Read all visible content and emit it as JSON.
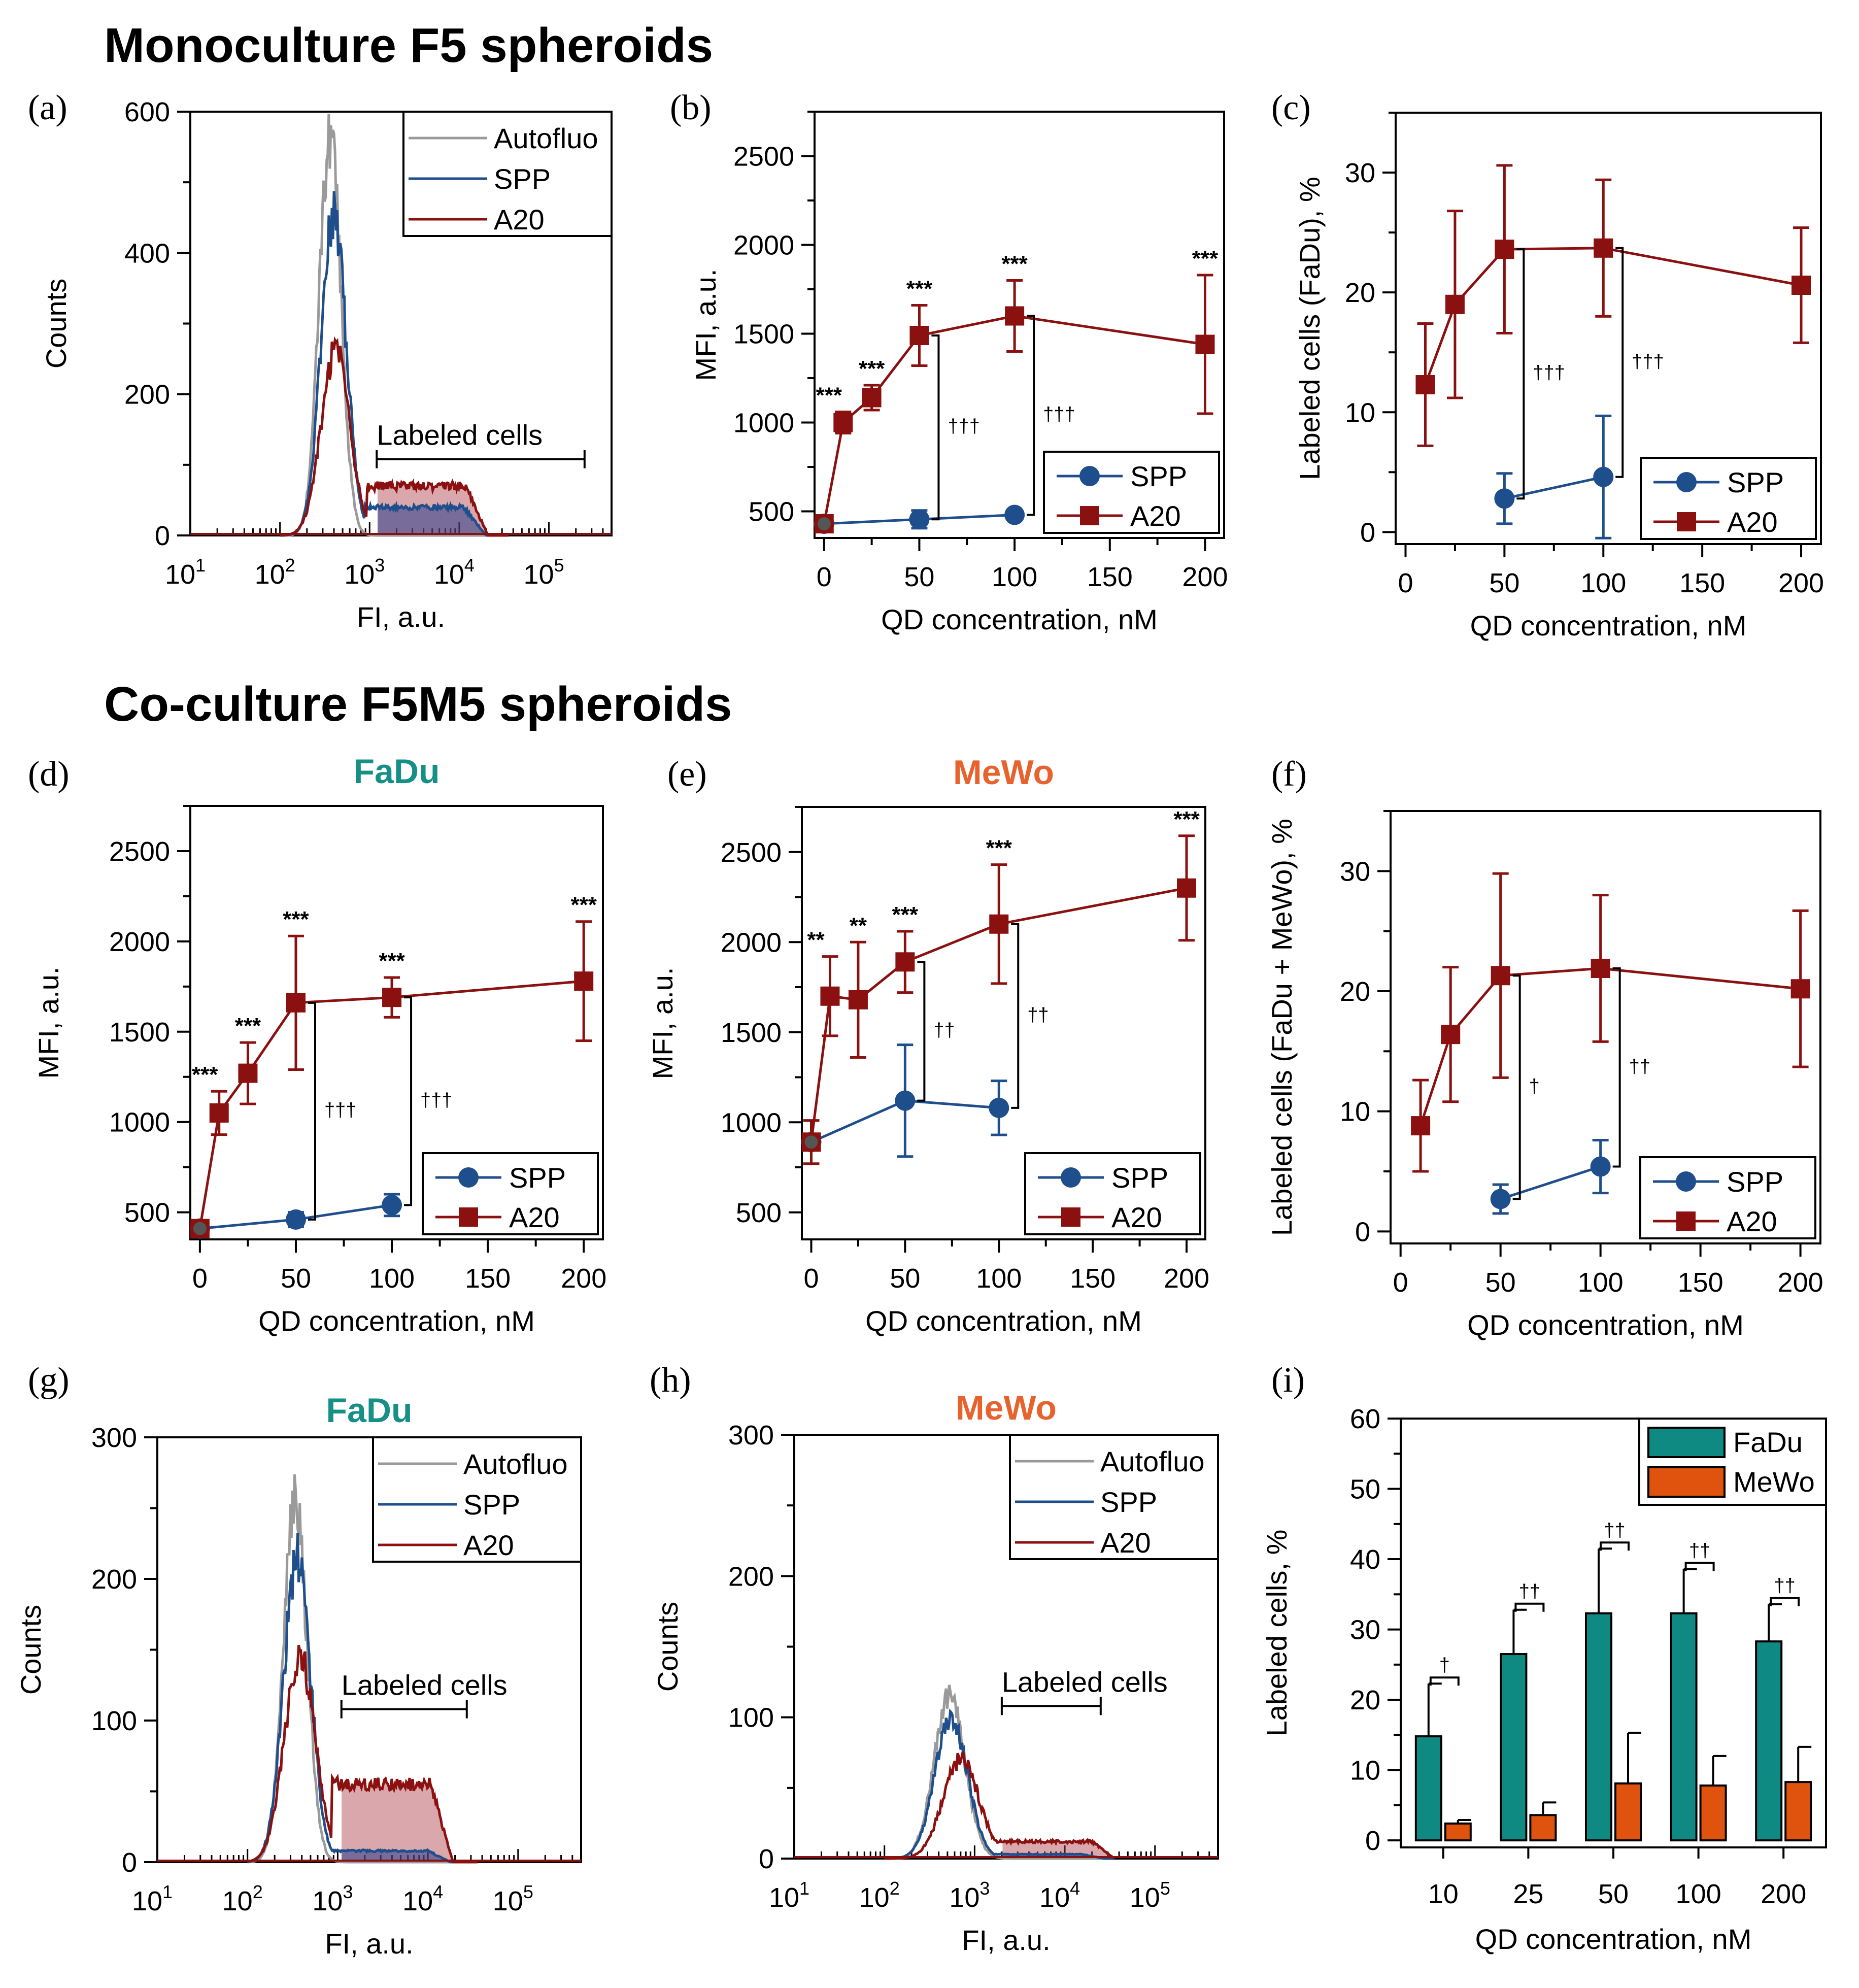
{
  "headings": {
    "monoculture": "Monoculture F5 spheroids",
    "coculture": "Co-culture F5M5 spheroids"
  },
  "colors": {
    "spp": "#1f4e8c",
    "a20": "#8b1010",
    "autofluo": "#9a9a9a",
    "fadu": "#0e8a83",
    "mewo": "#e0530f",
    "fadu_title": "#168f87",
    "mewo_title": "#e8622e"
  },
  "chart_data": [
    {
      "panel": "(a)",
      "type": "histogram",
      "title": "",
      "xlabel": "FI, a.u.",
      "ylabel": "Counts",
      "ylim": [
        0,
        600
      ],
      "yticks": [
        0,
        200,
        400,
        600
      ],
      "xscale": "log",
      "xlim": [
        10,
        500000
      ],
      "xticks": [
        {
          "base": "10",
          "exp": "1"
        },
        {
          "base": "10",
          "exp": "2"
        },
        {
          "base": "10",
          "exp": "3"
        },
        {
          "base": "10",
          "exp": "4"
        },
        {
          "base": "10",
          "exp": "5"
        }
      ],
      "legend": [
        "Autofluo",
        "SPP",
        "A20"
      ],
      "annotation": "Labeled cells",
      "gate": [
        1200,
        250000
      ],
      "series": [
        {
          "name": "Autofluo",
          "peak": 570,
          "center_log": 2.56,
          "width": 0.12,
          "tail": 0
        },
        {
          "name": "SPP",
          "peak": 450,
          "center_log": 2.6,
          "width": 0.14,
          "tail": 40
        },
        {
          "name": "A20",
          "peak": 260,
          "center_log": 2.62,
          "width": 0.16,
          "tail": 70
        }
      ]
    },
    {
      "panel": "(b)",
      "type": "line",
      "xlabel": "QD concentration, nM",
      "ylabel": "MFI, a.u.",
      "xlim": [
        -5,
        210
      ],
      "ylim": [
        350,
        2750
      ],
      "xticks": [
        0,
        50,
        100,
        150,
        200
      ],
      "yticks": [
        500,
        1000,
        1500,
        2000,
        2500
      ],
      "legend": [
        "SPP",
        "A20"
      ],
      "series": [
        {
          "name": "SPP",
          "x": [
            0,
            50,
            100
          ],
          "y": [
            430,
            455,
            480
          ],
          "err": [
            30,
            50,
            20
          ]
        },
        {
          "name": "A20",
          "x": [
            0,
            10,
            25,
            50,
            100,
            200
          ],
          "y": [
            430,
            1000,
            1140,
            1490,
            1600,
            1440
          ],
          "err": [
            30,
            60,
            70,
            170,
            200,
            390
          ]
        }
      ],
      "sig": [
        {
          "x": 10,
          "text": "***"
        },
        {
          "x": 25,
          "text": "***"
        },
        {
          "x": 50,
          "text": "***"
        },
        {
          "x": 100,
          "text": "***"
        },
        {
          "x": 200,
          "text": "***"
        }
      ],
      "daggers": [
        {
          "x": 50,
          "y1": 455,
          "y2": 1490,
          "text": "†††"
        },
        {
          "x": 100,
          "y1": 480,
          "y2": 1600,
          "text": "†††"
        }
      ]
    },
    {
      "panel": "(c)",
      "type": "line",
      "xlabel": "QD concentration, nM",
      "ylabel": "Labeled cells (FaDu), %",
      "xlim": [
        -5,
        210
      ],
      "ylim": [
        -1,
        35
      ],
      "xticks": [
        0,
        50,
        100,
        150,
        200
      ],
      "yticks": [
        0,
        10,
        20,
        30
      ],
      "legend": [
        "SPP",
        "A20"
      ],
      "series": [
        {
          "name": "SPP",
          "x": [
            50,
            100
          ],
          "y": [
            2.8,
            4.6
          ],
          "err": [
            2.1,
            5.1
          ]
        },
        {
          "name": "A20",
          "x": [
            10,
            25,
            50,
            100,
            200
          ],
          "y": [
            12.3,
            19,
            23.6,
            23.7,
            20.6
          ],
          "err": [
            5.1,
            7.8,
            7,
            5.7,
            4.8
          ]
        }
      ],
      "sig": [],
      "daggers": [
        {
          "x": 50,
          "y1": 2.8,
          "y2": 23.6,
          "text": "†††"
        },
        {
          "x": 100,
          "y1": 4.6,
          "y2": 23.7,
          "text": "†††"
        }
      ]
    },
    {
      "panel": "(d)",
      "type": "line",
      "subtitle": "FaDu",
      "xlabel": "QD concentration, nM",
      "ylabel": "MFI, a.u.",
      "xlim": [
        -5,
        210
      ],
      "ylim": [
        350,
        2750
      ],
      "xticks": [
        0,
        50,
        100,
        150,
        200
      ],
      "yticks": [
        500,
        1000,
        1500,
        2000,
        2500
      ],
      "legend": [
        "SPP",
        "A20"
      ],
      "series": [
        {
          "name": "SPP",
          "x": [
            0,
            50,
            100
          ],
          "y": [
            410,
            460,
            540
          ],
          "err": [
            30,
            40,
            60
          ]
        },
        {
          "name": "A20",
          "x": [
            0,
            10,
            25,
            50,
            100,
            200
          ],
          "y": [
            410,
            1050,
            1270,
            1660,
            1690,
            1780
          ],
          "err": [
            30,
            120,
            170,
            370,
            110,
            330
          ]
        }
      ],
      "sig": [
        {
          "x": 10,
          "text": "***"
        },
        {
          "x": 25,
          "text": "***"
        },
        {
          "x": 50,
          "text": "***"
        },
        {
          "x": 100,
          "text": "***"
        },
        {
          "x": 200,
          "text": "***"
        }
      ],
      "daggers": [
        {
          "x": 50,
          "y1": 460,
          "y2": 1660,
          "text": "†††"
        },
        {
          "x": 100,
          "y1": 540,
          "y2": 1690,
          "text": "†††"
        }
      ]
    },
    {
      "panel": "(e)",
      "type": "line",
      "subtitle": "MeWo",
      "xlabel": "QD concentration, nM",
      "ylabel": "MFI, a.u.",
      "xlim": [
        -5,
        210
      ],
      "ylim": [
        350,
        2750
      ],
      "xticks": [
        0,
        50,
        100,
        150,
        200
      ],
      "yticks": [
        500,
        1000,
        1500,
        2000,
        2500
      ],
      "legend": [
        "SPP",
        "A20"
      ],
      "series": [
        {
          "name": "SPP",
          "x": [
            0,
            50,
            100
          ],
          "y": [
            890,
            1120,
            1080
          ],
          "err": [
            120,
            310,
            150
          ]
        },
        {
          "name": "A20",
          "x": [
            0,
            10,
            25,
            50,
            100,
            200
          ],
          "y": [
            890,
            1700,
            1680,
            1890,
            2100,
            2300
          ],
          "err": [
            120,
            220,
            320,
            170,
            330,
            290
          ]
        }
      ],
      "sig": [
        {
          "x": 10,
          "text": "**"
        },
        {
          "x": 25,
          "text": "**"
        },
        {
          "x": 50,
          "text": "***"
        },
        {
          "x": 100,
          "text": "***"
        },
        {
          "x": 200,
          "text": "***"
        }
      ],
      "daggers": [
        {
          "x": 50,
          "y1": 1120,
          "y2": 1890,
          "text": "††"
        },
        {
          "x": 100,
          "y1": 1080,
          "y2": 2100,
          "text": "††"
        }
      ]
    },
    {
      "panel": "(f)",
      "type": "line",
      "xlabel": "QD concentration, nM",
      "ylabel": "Labeled cells (FaDu + MeWo), %",
      "xlim": [
        -5,
        210
      ],
      "ylim": [
        -1,
        35
      ],
      "xticks": [
        0,
        50,
        100,
        150,
        200
      ],
      "yticks": [
        0,
        10,
        20,
        30
      ],
      "legend": [
        "SPP",
        "A20"
      ],
      "series": [
        {
          "name": "SPP",
          "x": [
            50,
            100
          ],
          "y": [
            2.7,
            5.4
          ],
          "err": [
            1.2,
            2.2
          ]
        },
        {
          "name": "A20",
          "x": [
            10,
            25,
            50,
            100,
            200
          ],
          "y": [
            8.8,
            16.4,
            21.3,
            21.9,
            20.2
          ],
          "err": [
            3.8,
            5.6,
            8.5,
            6.1,
            6.5
          ]
        }
      ],
      "sig": [],
      "daggers": [
        {
          "x": 50,
          "y1": 2.7,
          "y2": 21.3,
          "text": "†"
        },
        {
          "x": 100,
          "y1": 5.4,
          "y2": 21.9,
          "text": "††"
        }
      ]
    },
    {
      "panel": "(g)",
      "type": "histogram",
      "subtitle": "FaDu",
      "xlabel": "FI, a.u.",
      "ylabel": "Counts",
      "ylim": [
        0,
        300
      ],
      "yticks": [
        0,
        100,
        200,
        300
      ],
      "xscale": "log",
      "xlim": [
        10,
        500000
      ],
      "xticks": [
        {
          "base": "10",
          "exp": "1"
        },
        {
          "base": "10",
          "exp": "2"
        },
        {
          "base": "10",
          "exp": "3"
        },
        {
          "base": "10",
          "exp": "4"
        },
        {
          "base": "10",
          "exp": "5"
        }
      ],
      "legend": [
        "Autofluo",
        "SPP",
        "A20"
      ],
      "annotation": "Labeled cells",
      "gate": [
        1100,
        27000
      ],
      "series": [
        {
          "name": "Autofluo",
          "peak": 255,
          "center_log": 2.53,
          "width": 0.13,
          "tail": 0
        },
        {
          "name": "SPP",
          "peak": 215,
          "center_log": 2.55,
          "width": 0.15,
          "tail": 8
        },
        {
          "name": "A20",
          "peak": 145,
          "center_log": 2.58,
          "width": 0.17,
          "tail": 55
        }
      ]
    },
    {
      "panel": "(h)",
      "type": "histogram",
      "subtitle": "MeWo",
      "xlabel": "FI, a.u.",
      "ylabel": "Counts",
      "ylim": [
        0,
        300
      ],
      "yticks": [
        0,
        100,
        200,
        300
      ],
      "xscale": "log",
      "xlim": [
        10,
        500000
      ],
      "xticks": [
        {
          "base": "10",
          "exp": "1"
        },
        {
          "base": "10",
          "exp": "2"
        },
        {
          "base": "10",
          "exp": "3"
        },
        {
          "base": "10",
          "exp": "4"
        },
        {
          "base": "10",
          "exp": "5"
        }
      ],
      "legend": [
        "Autofluo",
        "SPP",
        "A20"
      ],
      "annotation": "Labeled cells",
      "gate": [
        2000,
        25000
      ],
      "series": [
        {
          "name": "Autofluo",
          "peak": 115,
          "center_log": 2.72,
          "width": 0.17,
          "tail": 0
        },
        {
          "name": "SPP",
          "peak": 100,
          "center_log": 2.74,
          "width": 0.18,
          "tail": 3
        },
        {
          "name": "A20",
          "peak": 70,
          "center_log": 2.85,
          "width": 0.2,
          "tail": 12
        }
      ]
    },
    {
      "panel": "(i)",
      "type": "bar",
      "xlabel": "QD concentration, nM",
      "ylabel": "Labeled cells, %",
      "ylim": [
        -1,
        60
      ],
      "yticks": [
        0,
        10,
        20,
        30,
        40,
        50,
        60
      ],
      "categories": [
        "10",
        "25",
        "50",
        "100",
        "200"
      ],
      "legend": [
        "FaDu",
        "MeWo"
      ],
      "series": [
        {
          "name": "FaDu",
          "values": [
            14.8,
            26.5,
            32.3,
            32.3,
            28.3
          ],
          "err": [
            7.5,
            6.3,
            9.2,
            6.3,
            5.3
          ]
        },
        {
          "name": "MeWo",
          "values": [
            2.4,
            3.6,
            8.1,
            7.8,
            8.3
          ],
          "err": [
            0.5,
            1.8,
            7.2,
            4.2,
            5
          ]
        }
      ],
      "daggers": [
        "†",
        "††",
        "††",
        "††",
        "††"
      ]
    }
  ]
}
